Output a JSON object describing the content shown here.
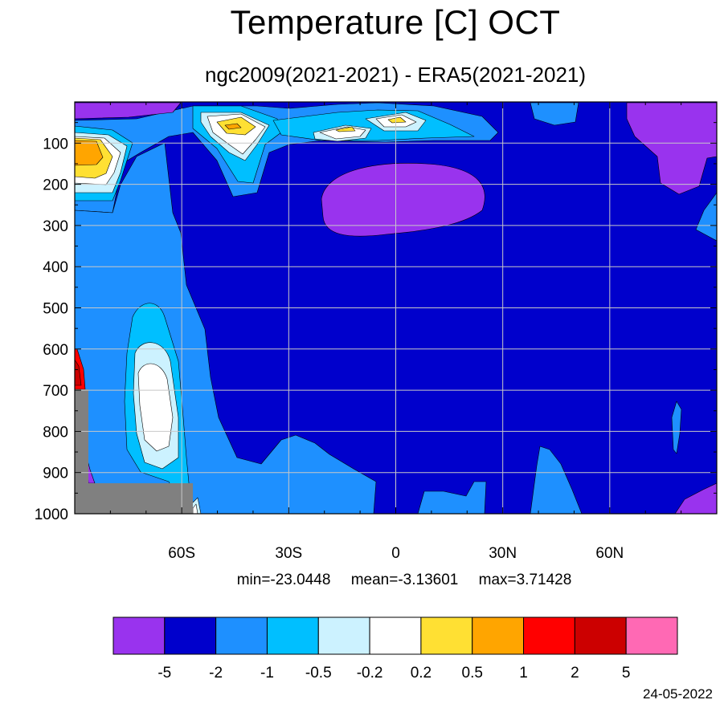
{
  "title": "Temperature [C] OCT",
  "subtitle": "ngc2009(2021-2021) - ERA5(2021-2021)",
  "stats": {
    "min": "min=-23.0448",
    "mean": "mean=-3.13601",
    "max": "max=3.71428"
  },
  "date": "24-05-2022",
  "chart_data": {
    "type": "heatmap",
    "title": "Temperature [C] OCT",
    "subtitle": "ngc2009(2021-2021) - ERA5(2021-2021)",
    "x_axis": {
      "range": [
        -90,
        90
      ],
      "ticks": [
        -60,
        -30,
        0,
        30,
        60
      ],
      "tick_labels": [
        "60S",
        "30S",
        "0",
        "30N",
        "60N"
      ]
    },
    "y_axis": {
      "range": [
        1000,
        0
      ],
      "orientation": "reversed",
      "ticks": [
        100,
        200,
        300,
        400,
        500,
        600,
        700,
        800,
        900,
        1000
      ],
      "tick_labels": [
        "100",
        "200",
        "300",
        "400",
        "500",
        "600",
        "700",
        "800",
        "900",
        "1000"
      ]
    },
    "grid": true,
    "colorbar": {
      "levels": [
        "-5",
        "-2",
        "-1",
        "-0.5",
        "-0.2",
        "0.2",
        "0.5",
        "1",
        "2",
        "5"
      ],
      "colors": [
        "#9933ee",
        "#0000cc",
        "#1e90ff",
        "#00bfff",
        "#ccf2ff",
        "#ffffff",
        "#ffe033",
        "#ffa500",
        "#ff0000",
        "#cc0000",
        "#ff69b4"
      ],
      "placement": "bottom"
    },
    "missing_color": "#808080",
    "statistics": {
      "min": -23.0448,
      "mean": -3.13601,
      "max": 3.71428
    },
    "dominant_value_range": [
      -5,
      -2
    ],
    "notable_features": [
      {
        "location": "60S-90S near 100-200 hPa",
        "value_range": [
          0.5,
          1
        ]
      },
      {
        "location": "around 45S near 50-100 hPa",
        "value_range": [
          0.5,
          1
        ]
      },
      {
        "location": "around 65S near 650-850 hPa",
        "value_range": [
          -0.2,
          0.2
        ]
      },
      {
        "location": "around 0 near 200-300 hPa",
        "value_range": [
          -23.0448,
          -5
        ]
      },
      {
        "location": "near 85S surface",
        "value_range": [
          2,
          3.71428
        ]
      }
    ]
  }
}
